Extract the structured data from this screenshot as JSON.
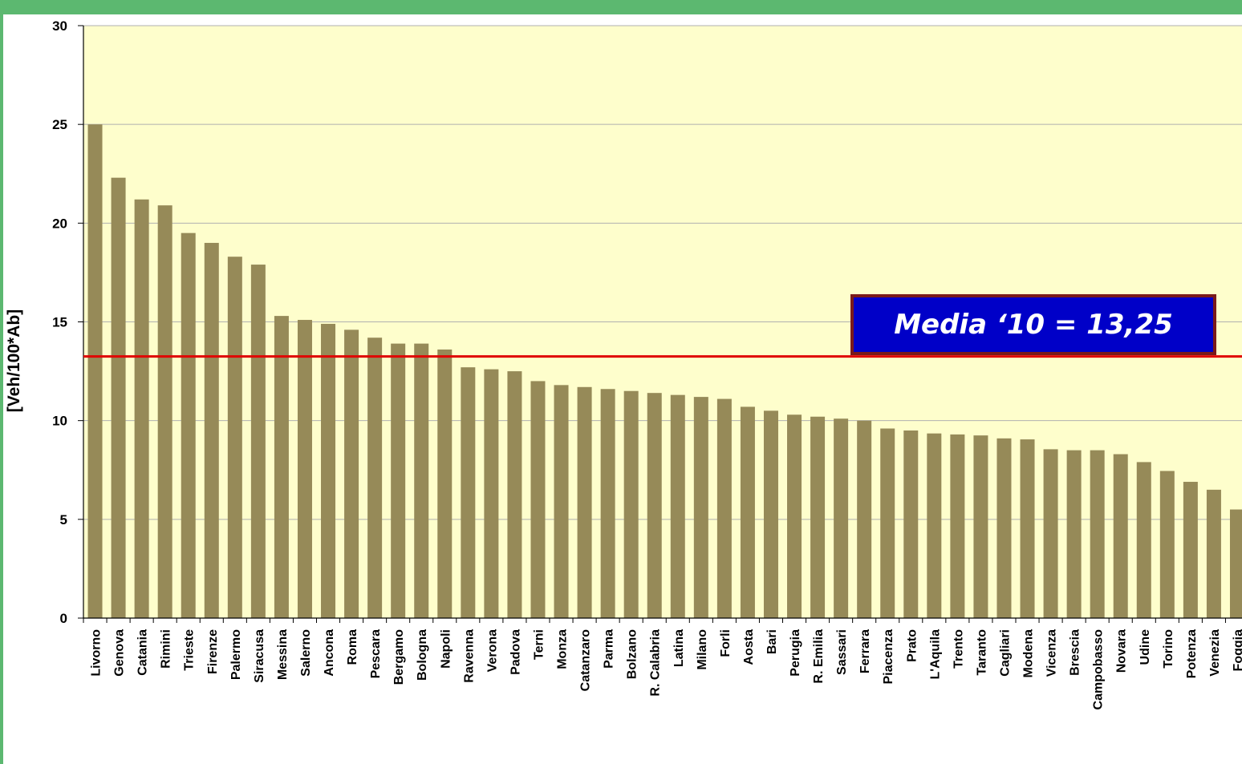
{
  "chart_data": {
    "type": "bar",
    "title": "",
    "xlabel": "",
    "ylabel": "[Veh/100*Ab]",
    "ylim": [
      0,
      30
    ],
    "yticks": [
      0,
      5,
      10,
      15,
      20,
      25,
      30
    ],
    "grid": true,
    "categories": [
      "Livorno",
      "Genova",
      "Catania",
      "Rimini",
      "Trieste",
      "Firenze",
      "Palermo",
      "Siracusa",
      "Messina",
      "Salerno",
      "Ancona",
      "Roma",
      "Pescara",
      "Bergamo",
      "Bologna",
      "Napoli",
      "Ravenna",
      "Verona",
      "Padova",
      "Terni",
      "Monza",
      "Catanzaro",
      "Parma",
      "Bolzano",
      "R. Calabria",
      "Latina",
      "Milano",
      "Forli",
      "Aosta",
      "Bari",
      "Perugia",
      "R. Emilia",
      "Sassari",
      "Ferrara",
      "Piacenza",
      "Prato",
      "L'Aquila",
      "Trento",
      "Taranto",
      "Cagliari",
      "Modena",
      "Vicenza",
      "Brescia",
      "Campobasso",
      "Novara",
      "Udine",
      "Torino",
      "Potenza",
      "Venezia",
      "Foggia"
    ],
    "values": [
      25.0,
      22.3,
      21.2,
      20.9,
      19.5,
      19.0,
      18.3,
      17.9,
      15.3,
      15.1,
      14.9,
      14.6,
      14.2,
      13.9,
      13.9,
      13.6,
      12.7,
      12.6,
      12.5,
      12.0,
      11.8,
      11.7,
      11.6,
      11.5,
      11.4,
      11.3,
      11.2,
      11.1,
      10.7,
      10.5,
      10.3,
      10.2,
      10.1,
      10.0,
      9.6,
      9.5,
      9.35,
      9.3,
      9.25,
      9.1,
      9.05,
      8.55,
      8.5,
      8.5,
      8.3,
      7.9,
      7.45,
      6.9,
      6.5,
      5.5
    ],
    "reference_line": {
      "value": 13.25,
      "color": "#e00000"
    },
    "annotation": "Media ‘10 = 13,25",
    "colors": {
      "bar": "#968a58",
      "plot_bg": "#fefecc",
      "grid": "#b0b0b0"
    }
  }
}
